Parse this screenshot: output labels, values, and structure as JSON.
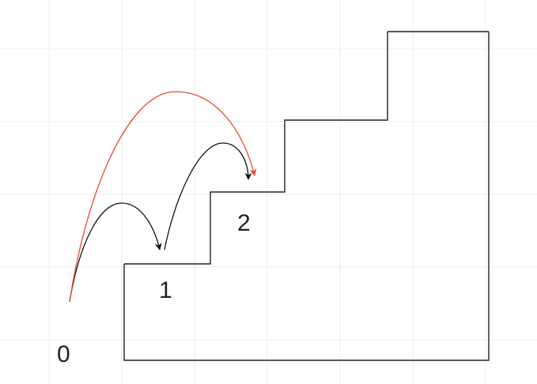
{
  "diagram": {
    "labels": {
      "step0": "0",
      "step1": "1",
      "step2": "2"
    },
    "colors": {
      "background": "#ffffff",
      "grid": "#ececec",
      "stairs": "#222222",
      "jump_arrow": "#111111",
      "skip_arrow": "#e8472c"
    }
  }
}
